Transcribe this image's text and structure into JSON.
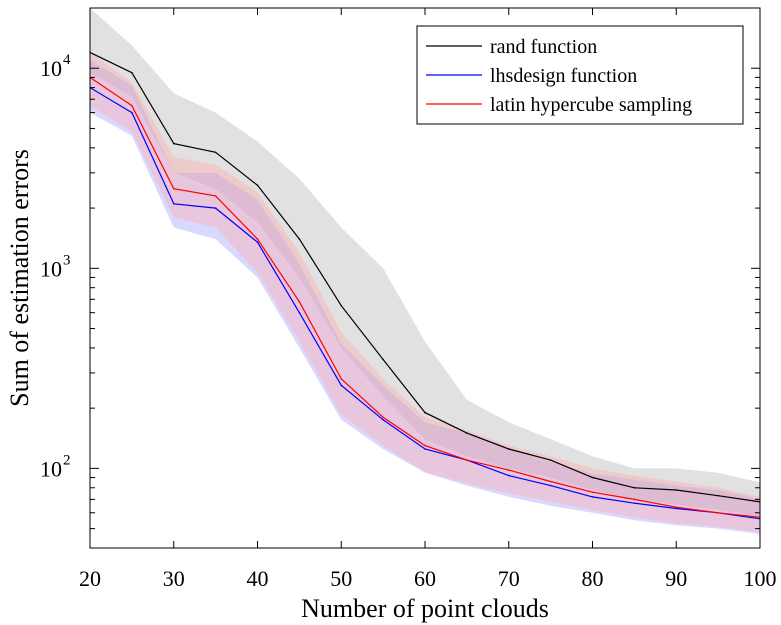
{
  "chart_data": {
    "type": "line",
    "title": "",
    "xlabel": "Number of point clouds",
    "ylabel": "Sum of estimation errors",
    "xlim": [
      20,
      100
    ],
    "ylim": [
      40,
      20000
    ],
    "yscale": "log",
    "grid": false,
    "legend_position": "top-right",
    "x_ticks": [
      20,
      30,
      40,
      50,
      60,
      70,
      80,
      90,
      100
    ],
    "x_tick_labels": [
      "20",
      "30",
      "40",
      "50",
      "60",
      "70",
      "80",
      "90",
      "100"
    ],
    "y_ticks": [
      100,
      1000,
      10000
    ],
    "y_tick_labels": [
      {
        "base": "10",
        "exp": "2"
      },
      {
        "base": "10",
        "exp": "3"
      },
      {
        "base": "10",
        "exp": "4"
      }
    ],
    "x": [
      20,
      25,
      30,
      35,
      40,
      45,
      50,
      55,
      60,
      65,
      70,
      75,
      80,
      85,
      90,
      95,
      100
    ],
    "series": [
      {
        "name": "rand function",
        "color": "#000000",
        "band_color": "#c8c8c8",
        "values": [
          12000,
          9500,
          4200,
          3800,
          2600,
          1400,
          650,
          350,
          190,
          150,
          125,
          110,
          90,
          80,
          78,
          73,
          68
        ],
        "lower": [
          9500,
          7200,
          3000,
          2500,
          1700,
          900,
          400,
          230,
          140,
          115,
          100,
          90,
          78,
          70,
          66,
          62,
          58
        ],
        "upper": [
          20000,
          13000,
          7500,
          6000,
          4300,
          2800,
          1600,
          1000,
          430,
          220,
          170,
          140,
          115,
          100,
          100,
          95,
          85
        ]
      },
      {
        "name": "lhsdesign function",
        "color": "#0000ff",
        "band_color": "#a0a0ff",
        "values": [
          8000,
          6000,
          2100,
          2000,
          1350,
          600,
          260,
          175,
          125,
          110,
          92,
          82,
          72,
          67,
          63,
          60,
          56
        ],
        "lower": [
          6000,
          4600,
          1600,
          1400,
          900,
          400,
          175,
          125,
          95,
          82,
          72,
          65,
          60,
          55,
          52,
          50,
          47
        ],
        "upper": [
          11000,
          8200,
          3000,
          3000,
          2200,
          1050,
          420,
          260,
          170,
          150,
          125,
          108,
          94,
          88,
          82,
          78,
          70
        ]
      },
      {
        "name": "latin hypercube sampling",
        "color": "#ff0000",
        "band_color": "#ffaaaa",
        "values": [
          9000,
          6500,
          2500,
          2300,
          1400,
          680,
          280,
          180,
          130,
          110,
          98,
          86,
          76,
          70,
          64,
          60,
          57
        ],
        "lower": [
          6500,
          4800,
          1800,
          1600,
          950,
          430,
          185,
          130,
          96,
          84,
          75,
          68,
          62,
          57,
          53,
          51,
          48
        ],
        "upper": [
          12000,
          8500,
          3600,
          3300,
          2400,
          1200,
          480,
          280,
          180,
          155,
          130,
          115,
          100,
          92,
          86,
          80,
          72
        ]
      }
    ]
  }
}
